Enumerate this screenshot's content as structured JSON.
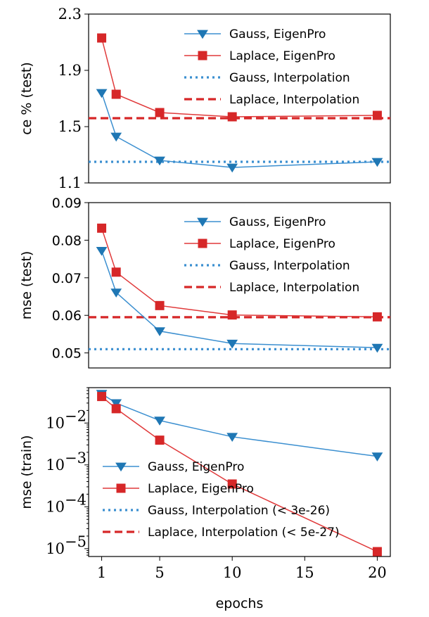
{
  "colors": {
    "gauss": "#1f77b4",
    "laplace": "#d62728",
    "gauss_line": "#3b8fd0",
    "laplace_line": "#e0393a"
  },
  "chart_data": [
    {
      "type": "line",
      "ylabel": "ce % (test)",
      "xlabel": "",
      "ylim": [
        1.1,
        2.3
      ],
      "yscale": "linear",
      "yticks": [
        "1.1",
        "1.5",
        "1.9",
        "2.3"
      ],
      "ytick_values": [
        1.1,
        1.5,
        1.9,
        2.3
      ],
      "legend_position": "top-right",
      "series": [
        {
          "name": "Gauss, EigenPro",
          "style": "triangle",
          "x": [
            1,
            2,
            5,
            10,
            20
          ],
          "y": [
            1.74,
            1.43,
            1.26,
            1.21,
            1.25
          ]
        },
        {
          "name": "Laplace, EigenPro",
          "style": "square",
          "x": [
            1,
            2,
            5,
            10,
            20
          ],
          "y": [
            2.13,
            1.73,
            1.6,
            1.57,
            1.58
          ]
        },
        {
          "name": "Gauss, Interpolation",
          "style": "dotted",
          "value": 1.25
        },
        {
          "name": "Laplace, Interpolation",
          "style": "dashed",
          "value": 1.56
        }
      ]
    },
    {
      "type": "line",
      "ylabel": "mse (test)",
      "xlabel": "",
      "ylim": [
        0.046,
        0.09
      ],
      "yscale": "linear",
      "yticks": [
        "0.05",
        "0.06",
        "0.07",
        "0.08",
        "0.09"
      ],
      "ytick_values": [
        0.05,
        0.06,
        0.07,
        0.08,
        0.09
      ],
      "legend_position": "top-right",
      "series": [
        {
          "name": "Gauss, EigenPro",
          "style": "triangle",
          "x": [
            1,
            2,
            5,
            10,
            20
          ],
          "y": [
            0.0772,
            0.0661,
            0.0558,
            0.0525,
            0.0514
          ]
        },
        {
          "name": "Laplace, EigenPro",
          "style": "square",
          "x": [
            1,
            2,
            5,
            10,
            20
          ],
          "y": [
            0.0832,
            0.0715,
            0.0626,
            0.0601,
            0.0596
          ]
        },
        {
          "name": "Gauss, Interpolation",
          "style": "dotted",
          "value": 0.051
        },
        {
          "name": "Laplace, Interpolation",
          "style": "dashed",
          "value": 0.0595
        }
      ]
    },
    {
      "type": "line",
      "ylabel": "mse (train)",
      "xlabel": "epochs",
      "ylim": [
        6.5e-06,
        0.07
      ],
      "yscale": "log",
      "yticks": [
        "10",
        "10",
        "10",
        "10"
      ],
      "ytick_exponents": [
        "−5",
        "−4",
        "−3",
        "−2"
      ],
      "ytick_values": [
        1e-05,
        0.0001,
        0.001,
        0.01
      ],
      "xticks": [
        "1",
        "5",
        "10",
        "15",
        "20"
      ],
      "xtick_values": [
        1,
        5,
        10,
        15,
        20
      ],
      "xlim": [
        0.1,
        20.9
      ],
      "legend_position": "bottom-left",
      "series": [
        {
          "name": "Gauss, EigenPro",
          "style": "triangle",
          "x": [
            1,
            2,
            5,
            10,
            20
          ],
          "y": [
            0.05,
            0.03,
            0.0115,
            0.0047,
            0.0016
          ]
        },
        {
          "name": "Laplace, EigenPro",
          "style": "square",
          "x": [
            1,
            2,
            5,
            10,
            20
          ],
          "y": [
            0.043,
            0.022,
            0.0039,
            0.00035,
            8.5e-06
          ]
        },
        {
          "name": "Gauss, Interpolation (< 3e-26)",
          "style": "dotted"
        },
        {
          "name": "Laplace, Interpolation (< 5e-27)",
          "style": "dashed"
        }
      ]
    }
  ]
}
